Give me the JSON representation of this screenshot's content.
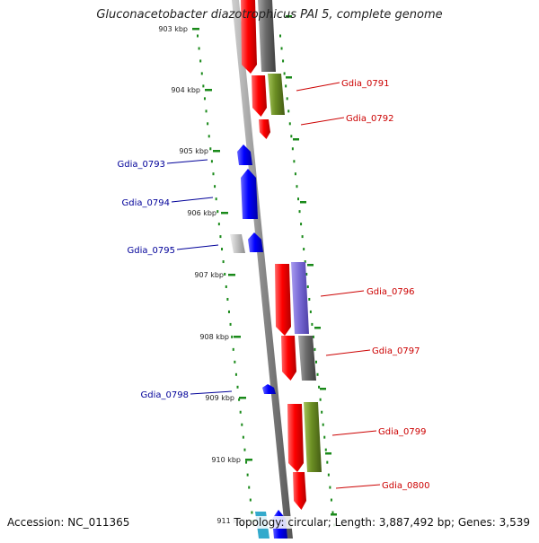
{
  "title": "Gluconacetobacter diazotrophicus PAI 5, complete genome",
  "accession": "Accession: NC_011365",
  "summary": "Topology: circular; Length: 3,887,492 bp; Genes: 3,539",
  "colors": {
    "forward_gene": "#ff0000",
    "reverse_gene": "#0000ff",
    "backbone": "#888888",
    "ruler": "#1a8a1a",
    "forward_label": "#cc0000",
    "reverse_label": "#000099",
    "grey_feature": "#6b6b6b",
    "olive_feature": "#6b8e23",
    "purple_feature": "#7a6bd6"
  },
  "ticks": [
    {
      "label": "903 kbp"
    },
    {
      "label": "904 kbp"
    },
    {
      "label": "905 kbp"
    },
    {
      "label": "906 kbp"
    },
    {
      "label": "907 kbp"
    },
    {
      "label": "908 kbp"
    },
    {
      "label": "909 kbp"
    },
    {
      "label": "910 kbp"
    },
    {
      "label": "911 kbp"
    }
  ],
  "forward_labels": [
    {
      "name": "Gdia_0791"
    },
    {
      "name": "Gdia_0792"
    },
    {
      "name": "Gdia_0796"
    },
    {
      "name": "Gdia_0797"
    },
    {
      "name": "Gdia_0799"
    },
    {
      "name": "Gdia_0800"
    }
  ],
  "reverse_labels": [
    {
      "name": "Gdia_0793"
    },
    {
      "name": "Gdia_0794"
    },
    {
      "name": "Gdia_0795"
    },
    {
      "name": "Gdia_0798"
    }
  ]
}
